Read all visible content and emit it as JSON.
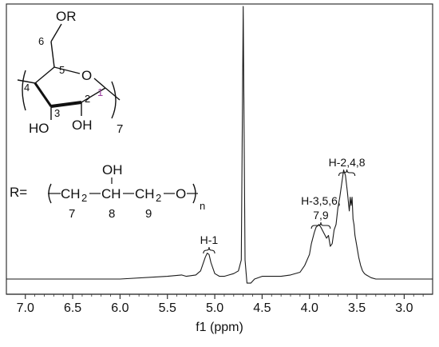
{
  "chart_data": {
    "type": "line",
    "title": "",
    "xlabel": "f1 (ppm)",
    "ylabel": "",
    "xlim": [
      7.2,
      2.7
    ],
    "x_reversed": true,
    "ylim": [
      0,
      1
    ],
    "grid": false,
    "x_ticks": [
      "7.0",
      "6.5",
      "6.0",
      "5.5",
      "5.0",
      "4.5",
      "4.0",
      "3.5",
      "3.0"
    ],
    "x_tick_values": [
      7.0,
      6.5,
      6.0,
      5.5,
      5.0,
      4.5,
      4.0,
      3.5,
      3.0
    ],
    "series": [
      {
        "x": [
          7.2,
          6.0,
          5.5,
          5.35,
          5.3,
          5.2,
          5.15,
          5.1,
          5.08,
          5.06,
          5.04,
          5.0,
          4.95,
          4.9,
          4.85,
          4.8,
          4.75,
          4.72,
          4.7,
          4.68,
          4.66,
          4.62,
          4.58,
          4.5,
          4.4,
          4.3,
          4.2,
          4.1,
          4.05,
          4.0,
          3.98,
          3.95,
          3.93,
          3.9,
          3.88,
          3.85,
          3.82,
          3.8,
          3.78,
          3.76,
          3.74,
          3.72,
          3.7,
          3.68,
          3.66,
          3.64,
          3.62,
          3.6,
          3.58,
          3.57,
          3.56,
          3.55,
          3.54,
          3.53,
          3.52,
          3.5,
          3.48,
          3.46,
          3.44,
          3.42,
          3.4,
          3.35,
          3.3,
          3.2,
          3.0,
          2.7
        ],
        "y": [
          0.0,
          0.0,
          0.01,
          0.015,
          0.01,
          0.015,
          0.03,
          0.08,
          0.095,
          0.09,
          0.06,
          0.02,
          0.01,
          0.01,
          0.015,
          0.02,
          0.03,
          0.07,
          1.0,
          0.07,
          -0.015,
          -0.015,
          0.0,
          0.01,
          0.01,
          0.01,
          0.015,
          0.025,
          0.05,
          0.09,
          0.13,
          0.17,
          0.19,
          0.2,
          0.19,
          0.17,
          0.15,
          0.16,
          0.12,
          0.13,
          0.18,
          0.2,
          0.26,
          0.3,
          0.35,
          0.4,
          0.38,
          0.32,
          0.25,
          0.3,
          0.27,
          0.3,
          0.22,
          0.2,
          0.16,
          0.12,
          0.08,
          0.05,
          0.03,
          0.02,
          0.015,
          0.005,
          0.0,
          0.0,
          0.0,
          0.0
        ]
      }
    ],
    "annotations": [
      {
        "label": "H-1",
        "x_from": 5.12,
        "x_to": 5.0
      },
      {
        "label": "H-3,5,6,\n7,9",
        "x_from": 3.98,
        "x_to": 3.78
      },
      {
        "label": "H-2,4,8",
        "x_from": 3.69,
        "x_to": 3.52
      }
    ]
  },
  "structure": {
    "or_label": "OR",
    "ring_o": "O",
    "c6": "6",
    "c5": "5",
    "c4": "4",
    "c3": "3",
    "c2": "2",
    "c1": "1",
    "ho3": "HO",
    "oh2": "OH",
    "n_repeat": "7",
    "r_eq": "R=",
    "oh_top": "OH",
    "ch2_a": "CH",
    "sub2_a": "2",
    "ch_b": "CH",
    "ch2_c": "CH",
    "sub2_c": "2",
    "o_end": "O",
    "sub_n": "n",
    "num7": "7",
    "num8": "8",
    "num9": "9"
  },
  "colors": {
    "line": "#1a1a1a",
    "c1_label": "#9b3fa0"
  }
}
